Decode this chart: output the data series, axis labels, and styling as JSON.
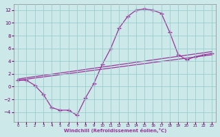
{
  "bg_color": "#cce8e8",
  "grid_color": "#99cccc",
  "line_color": "#993399",
  "xlabel": "Windchill (Refroidissement éolien,°C)",
  "xlim": [
    -0.5,
    23.5
  ],
  "ylim": [
    -5.5,
    13
  ],
  "xticks": [
    0,
    1,
    2,
    3,
    4,
    5,
    6,
    7,
    8,
    9,
    10,
    11,
    12,
    13,
    14,
    15,
    16,
    17,
    18,
    19,
    20,
    21,
    22,
    23
  ],
  "yticks": [
    -4,
    -2,
    0,
    2,
    4,
    6,
    8,
    10,
    12
  ],
  "curve_x": [
    0,
    1,
    2,
    3,
    4,
    5,
    6,
    7,
    8,
    9,
    10,
    11,
    12,
    13,
    14,
    15,
    16,
    17,
    18,
    19,
    20,
    21,
    22,
    23
  ],
  "curve_y": [
    1,
    1,
    0.2,
    -1.2,
    -3.3,
    -3.7,
    -3.7,
    -4.5,
    -1.8,
    0.5,
    3.5,
    6.0,
    9.2,
    11.0,
    12.0,
    12.2,
    12.0,
    11.5,
    8.5,
    5.0,
    4.2,
    4.7,
    5.0,
    5.2
  ],
  "line1_x": [
    0,
    23
  ],
  "line1_y": [
    1.0,
    5.0
  ],
  "line2_x": [
    0,
    23
  ],
  "line2_y": [
    1.2,
    5.5
  ]
}
